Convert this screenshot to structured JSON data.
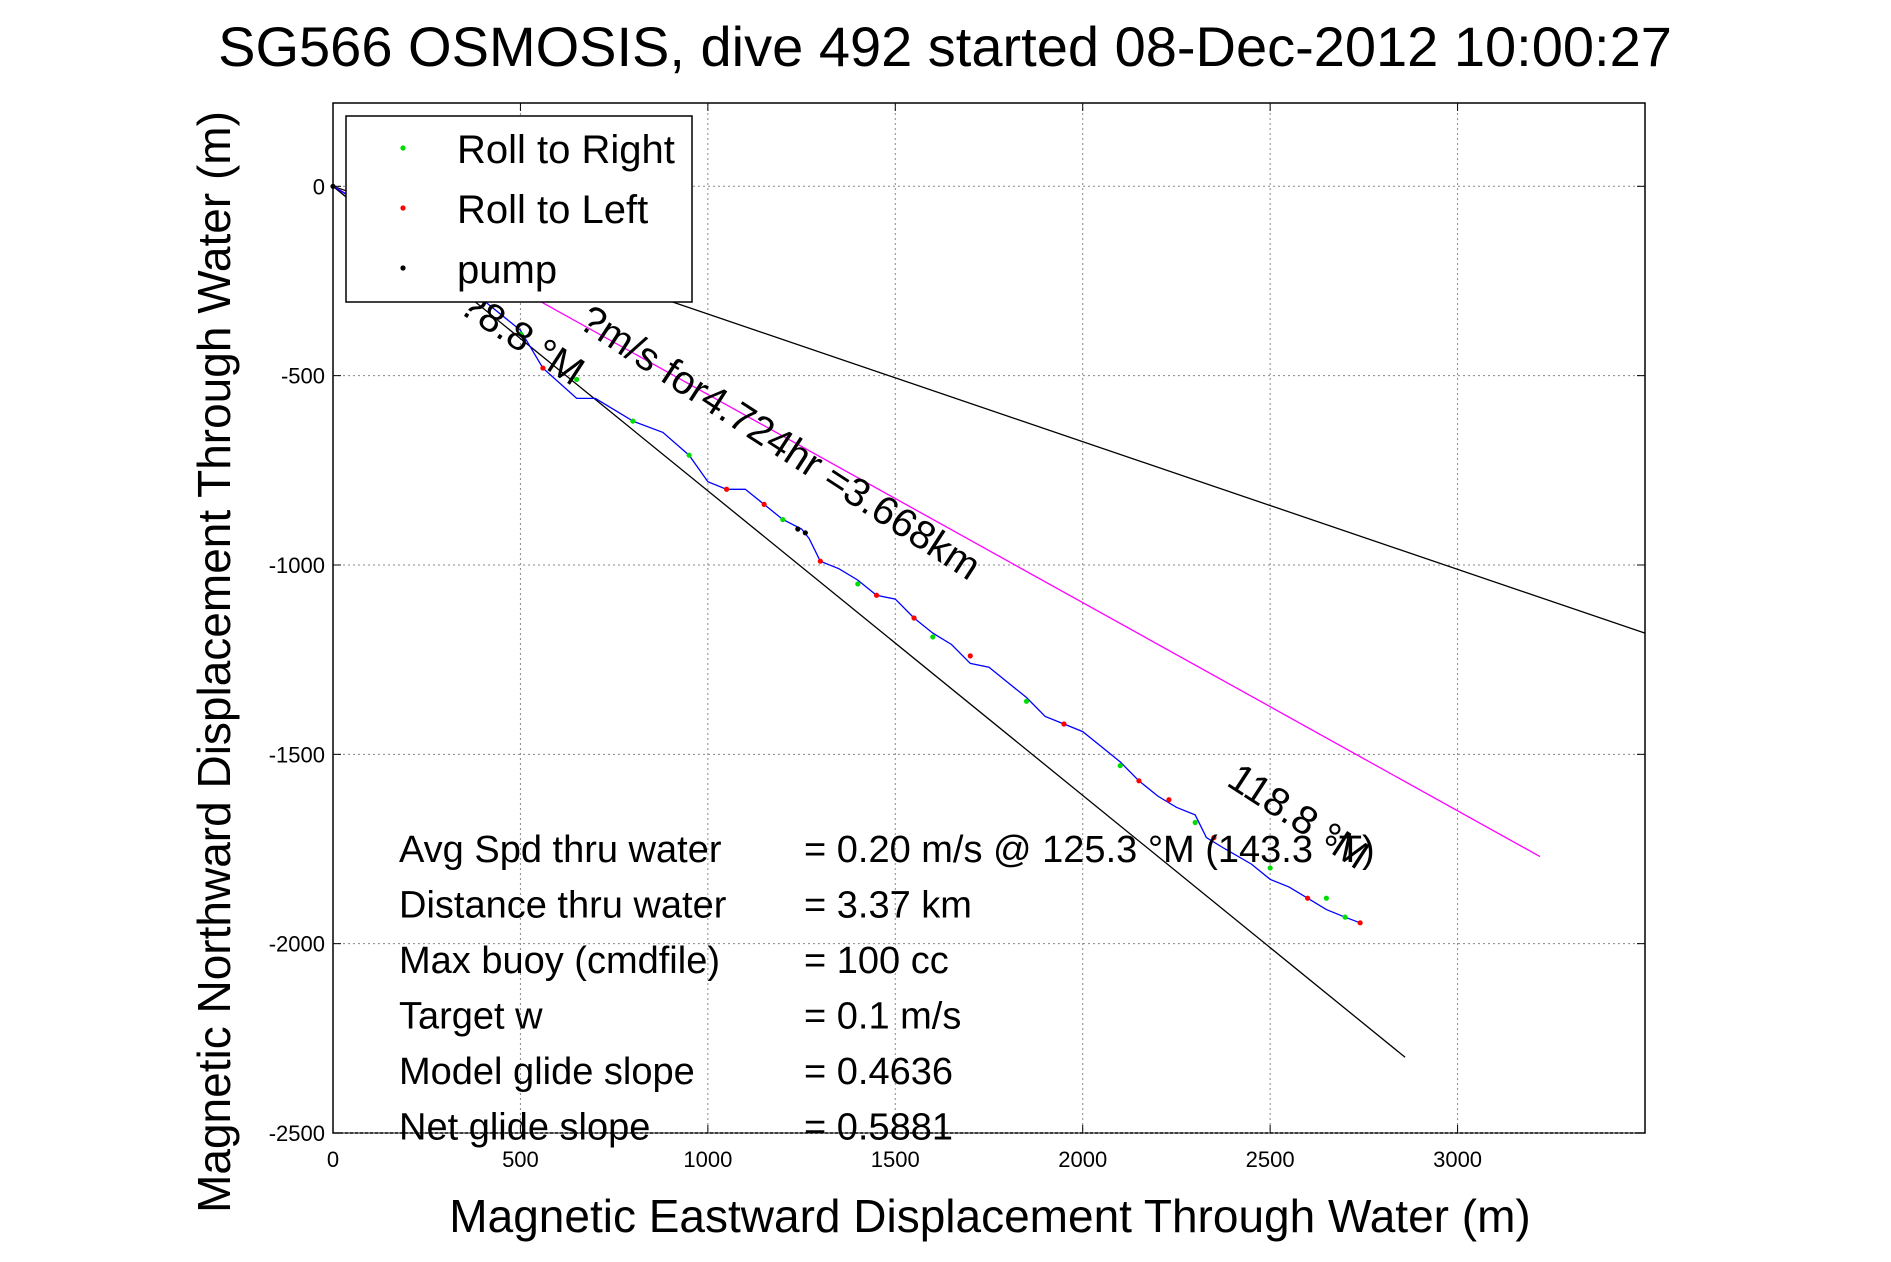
{
  "chart_data": {
    "type": "line",
    "title": "SG566 OSMOSIS, dive 492 started 08-Dec-2012 10:00:27",
    "xlabel": "Magnetic Eastward Displacement Through Water (m)",
    "ylabel": "Magnetic Northward Displacement Through Water (m)",
    "xlim": [
      0,
      3500
    ],
    "ylim": [
      -2500,
      220
    ],
    "xticks": [
      0,
      500,
      1000,
      1500,
      2000,
      2500,
      3000
    ],
    "yticks": [
      0,
      -500,
      -1000,
      -1500,
      -2000,
      -2500
    ],
    "grid": true,
    "legend": {
      "placement": "top-left",
      "entries": [
        {
          "label": "Roll to Right",
          "color": "#00dd00"
        },
        {
          "label": "Roll to Left",
          "color": "#ff0000"
        },
        {
          "label": "pump",
          "color": "#000000"
        }
      ]
    },
    "series": [
      {
        "name": "track",
        "color": "#0000ff",
        "x": [
          0,
          100,
          200,
          300,
          400,
          500,
          560,
          650,
          700,
          800,
          880,
          950,
          1000,
          1050,
          1100,
          1150,
          1200,
          1250,
          1270,
          1300,
          1350,
          1400,
          1450,
          1500,
          1550,
          1600,
          1650,
          1700,
          1750,
          1800,
          1850,
          1900,
          1950,
          2000,
          2050,
          2100,
          2150,
          2200,
          2250,
          2300,
          2330,
          2380,
          2450,
          2500,
          2550,
          2600,
          2650,
          2700,
          2740
        ],
        "y": [
          0,
          -60,
          -130,
          -220,
          -300,
          -380,
          -480,
          -560,
          -560,
          -620,
          -650,
          -710,
          -780,
          -800,
          -800,
          -840,
          -880,
          -905,
          -930,
          -990,
          -1010,
          -1040,
          -1080,
          -1090,
          -1140,
          -1180,
          -1210,
          -1260,
          -1270,
          -1310,
          -1350,
          -1400,
          -1420,
          -1440,
          -1480,
          -1520,
          -1570,
          -1610,
          -1640,
          -1660,
          -1720,
          -1750,
          -1790,
          -1830,
          -1850,
          -1880,
          -1910,
          -1930,
          -1945
        ]
      },
      {
        "name": "roll_right",
        "color": "#00dd00",
        "x": [
          200,
          500,
          650,
          800,
          950,
          1200,
          1400,
          1600,
          1850,
          2100,
          2300,
          2500,
          2650,
          2700
        ],
        "y": [
          -130,
          -390,
          -510,
          -620,
          -710,
          -880,
          -1050,
          -1190,
          -1360,
          -1530,
          -1680,
          -1800,
          -1880,
          -1930
        ]
      },
      {
        "name": "roll_left",
        "color": "#ff0000",
        "x": [
          100,
          400,
          560,
          1050,
          1150,
          1300,
          1450,
          1550,
          1700,
          1950,
          2150,
          2230,
          2350,
          2600,
          2740
        ],
        "y": [
          -60,
          -300,
          -480,
          -800,
          -840,
          -990,
          -1080,
          -1140,
          -1240,
          -1420,
          -1570,
          -1620,
          -1720,
          -1880,
          -1945
        ]
      },
      {
        "name": "pump",
        "color": "#000000",
        "x": [
          0,
          1240,
          1260
        ],
        "y": [
          0,
          -905,
          -915
        ]
      }
    ],
    "reference_lines": [
      {
        "name": "bound_upper",
        "color": "#000000",
        "x": [
          0,
          3500
        ],
        "y": [
          0,
          -1180
        ]
      },
      {
        "name": "bound_lower",
        "color": "#000000",
        "x": [
          0,
          2860
        ],
        "y": [
          0,
          -2300
        ]
      },
      {
        "name": "heading_line",
        "color": "#ff00ff",
        "x": [
          0,
          3220
        ],
        "y": [
          0,
          -1770
        ]
      }
    ],
    "annotations": [
      {
        "text": "118.8 °M",
        "x": 2380,
        "y": -1580,
        "angle": 33
      },
      {
        "text": "?m/s for4.724hr =3.668km",
        "x": 650,
        "y": -370,
        "angle": 33
      },
      {
        "text": "?8.8 °M",
        "x": 330,
        "y": -330,
        "angle": 33
      }
    ],
    "stats": [
      {
        "label": "Avg Spd thru water",
        "value": "=  0.20 m/s @ 125.3 °M (143.3 °T)"
      },
      {
        "label": "Distance thru water",
        "value": "=  3.37 km"
      },
      {
        "label": "Max buoy (cmdfile)",
        "value": "= 100 cc"
      },
      {
        "label": "Target w",
        "value": "= 0.1 m/s"
      },
      {
        "label": "Model glide slope",
        "value": "= 0.4636"
      },
      {
        "label": "Net glide slope",
        "value": "= 0.5881"
      }
    ]
  }
}
